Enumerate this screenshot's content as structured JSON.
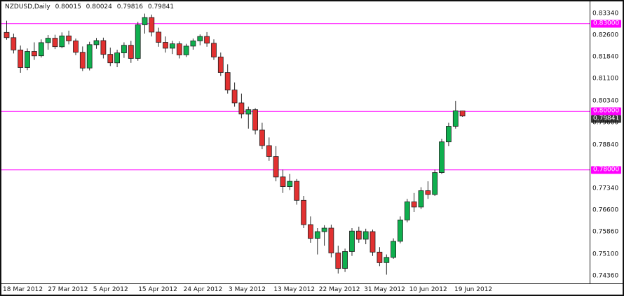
{
  "header": {
    "symbol": "NZDUSD,Daily",
    "open": "0.80015",
    "high": "0.80024",
    "low": "0.79816",
    "close": "0.79841"
  },
  "colors": {
    "background": "#ffffff",
    "bull": "#0faf4e",
    "bear": "#e23131",
    "outline": "#1f1f1f",
    "wick": "#2a2a2a",
    "level_line": "#ff00ff",
    "level_label_bg": "#ff00ff",
    "current_label_bg": "#3a3a3a",
    "axis_text": "#111111"
  },
  "chart_data": {
    "type": "candlestick",
    "symbol": "NZDUSD",
    "timeframe": "Daily",
    "title": "NZDUSD,Daily 0.80015 0.80024 0.79816 0.79841",
    "current_bar": {
      "open": 0.80015,
      "high": 0.80024,
      "low": 0.79816,
      "close": 0.79841
    },
    "levels": [
      0.83,
      0.8,
      0.78
    ],
    "ylim": [
      0.7436,
      0.8334
    ],
    "y_axis": [
      {
        "text": "0.83340",
        "price": 0.8334,
        "style": "normal"
      },
      {
        "text": "0.83000",
        "price": 0.83,
        "style": "level"
      },
      {
        "text": "0.82600",
        "price": 0.826,
        "style": "normal"
      },
      {
        "text": "0.81840",
        "price": 0.8184,
        "style": "normal"
      },
      {
        "text": "0.81100",
        "price": 0.811,
        "style": "normal"
      },
      {
        "text": "0.80340",
        "price": 0.8034,
        "style": "normal"
      },
      {
        "text": "0.80000",
        "price": 0.8,
        "style": "level"
      },
      {
        "text": "0.79841",
        "price": 0.79841,
        "style": "current"
      },
      {
        "text": "0.79600",
        "price": 0.796,
        "style": "normal"
      },
      {
        "text": "0.78840",
        "price": 0.7884,
        "style": "normal"
      },
      {
        "text": "0.78000",
        "price": 0.78,
        "style": "level"
      },
      {
        "text": "0.77340",
        "price": 0.7734,
        "style": "normal"
      },
      {
        "text": "0.76600",
        "price": 0.766,
        "style": "normal"
      },
      {
        "text": "0.75860",
        "price": 0.7586,
        "style": "normal"
      },
      {
        "text": "0.75100",
        "price": 0.751,
        "style": "normal"
      },
      {
        "text": "0.74360",
        "price": 0.7436,
        "style": "normal"
      }
    ],
    "x_axis": [
      "18 Mar 2012",
      "27 Mar 2012",
      "5 Apr 2012",
      "15 Apr 2012",
      "24 Apr 2012",
      "3 May 2012",
      "13 May 2012",
      "22 May 2012",
      "31 May 2012",
      "10 Jun 2012",
      "19 Jun 2012"
    ],
    "candles": [
      [
        0.827,
        0.831,
        0.8245,
        0.8252
      ],
      [
        0.8252,
        0.8266,
        0.8198,
        0.821
      ],
      [
        0.821,
        0.8225,
        0.8132,
        0.815
      ],
      [
        0.815,
        0.8215,
        0.8141,
        0.8205
      ],
      [
        0.8205,
        0.8236,
        0.8176,
        0.819
      ],
      [
        0.819,
        0.8246,
        0.8184,
        0.8235
      ],
      [
        0.8235,
        0.8261,
        0.8211,
        0.825
      ],
      [
        0.825,
        0.8262,
        0.8213,
        0.8221
      ],
      [
        0.8221,
        0.827,
        0.8216,
        0.8258
      ],
      [
        0.8258,
        0.8276,
        0.8229,
        0.8241
      ],
      [
        0.8241,
        0.8249,
        0.8192,
        0.8202
      ],
      [
        0.8202,
        0.8222,
        0.8138,
        0.8148
      ],
      [
        0.8148,
        0.8238,
        0.814,
        0.8228
      ],
      [
        0.8228,
        0.8251,
        0.8214,
        0.8242
      ],
      [
        0.8242,
        0.8252,
        0.8181,
        0.8195
      ],
      [
        0.8195,
        0.8218,
        0.8155,
        0.8166
      ],
      [
        0.8166,
        0.8211,
        0.8151,
        0.82
      ],
      [
        0.82,
        0.8236,
        0.8183,
        0.8226
      ],
      [
        0.8226,
        0.8241,
        0.8166,
        0.8181
      ],
      [
        0.8181,
        0.8306,
        0.8173,
        0.8296
      ],
      [
        0.8296,
        0.8334,
        0.8266,
        0.8321
      ],
      [
        0.8321,
        0.8331,
        0.8256,
        0.8271
      ],
      [
        0.8271,
        0.8286,
        0.8221,
        0.8236
      ],
      [
        0.8236,
        0.8256,
        0.8201,
        0.8216
      ],
      [
        0.8216,
        0.8241,
        0.8196,
        0.8231
      ],
      [
        0.8231,
        0.8239,
        0.8181,
        0.8193
      ],
      [
        0.8193,
        0.8231,
        0.8186,
        0.8223
      ],
      [
        0.8223,
        0.8249,
        0.8211,
        0.8241
      ],
      [
        0.8241,
        0.8263,
        0.8226,
        0.8256
      ],
      [
        0.8256,
        0.8271,
        0.8221,
        0.8233
      ],
      [
        0.8233,
        0.8246,
        0.8176,
        0.8186
      ],
      [
        0.8186,
        0.8201,
        0.8121,
        0.8133
      ],
      [
        0.8133,
        0.8161,
        0.8061,
        0.8073
      ],
      [
        0.8073,
        0.8099,
        0.8016,
        0.8029
      ],
      [
        0.8029,
        0.8061,
        0.7976,
        0.7991
      ],
      [
        0.7991,
        0.8016,
        0.7941,
        0.8006
      ],
      [
        0.8006,
        0.8011,
        0.7921,
        0.7936
      ],
      [
        0.7936,
        0.7961,
        0.7871,
        0.7883
      ],
      [
        0.7883,
        0.7911,
        0.7831,
        0.7846
      ],
      [
        0.7846,
        0.7881,
        0.7761,
        0.7776
      ],
      [
        0.7776,
        0.7801,
        0.7721,
        0.7743
      ],
      [
        0.7743,
        0.7786,
        0.7731,
        0.7761
      ],
      [
        0.7761,
        0.7769,
        0.7681,
        0.7696
      ],
      [
        0.7696,
        0.7711,
        0.7601,
        0.7613
      ],
      [
        0.7613,
        0.7641,
        0.7551,
        0.7566
      ],
      [
        0.7566,
        0.7601,
        0.7511,
        0.7589
      ],
      [
        0.7589,
        0.7611,
        0.7541,
        0.7601
      ],
      [
        0.7601,
        0.7613,
        0.7501,
        0.7516
      ],
      [
        0.7516,
        0.7541,
        0.7446,
        0.7463
      ],
      [
        0.7463,
        0.7531,
        0.7451,
        0.7521
      ],
      [
        0.7521,
        0.7601,
        0.7506,
        0.7591
      ],
      [
        0.7591,
        0.7606,
        0.7551,
        0.7563
      ],
      [
        0.7563,
        0.7599,
        0.7546,
        0.7589
      ],
      [
        0.7589,
        0.7596,
        0.7506,
        0.7519
      ],
      [
        0.7519,
        0.7536,
        0.7471,
        0.7483
      ],
      [
        0.7483,
        0.7511,
        0.7442,
        0.7501
      ],
      [
        0.7501,
        0.7566,
        0.7496,
        0.7556
      ],
      [
        0.7556,
        0.7641,
        0.7549,
        0.7629
      ],
      [
        0.7629,
        0.7701,
        0.7621,
        0.7691
      ],
      [
        0.7691,
        0.7721,
        0.7656,
        0.7673
      ],
      [
        0.7673,
        0.7741,
        0.7666,
        0.7729
      ],
      [
        0.7729,
        0.7761,
        0.7701,
        0.7716
      ],
      [
        0.7716,
        0.7801,
        0.7711,
        0.7791
      ],
      [
        0.7791,
        0.7906,
        0.7786,
        0.7896
      ],
      [
        0.7896,
        0.7961,
        0.7881,
        0.7949
      ],
      [
        0.7949,
        0.8036,
        0.7941,
        0.8002
      ],
      [
        0.80015,
        0.80024,
        0.79816,
        0.79841
      ]
    ]
  }
}
